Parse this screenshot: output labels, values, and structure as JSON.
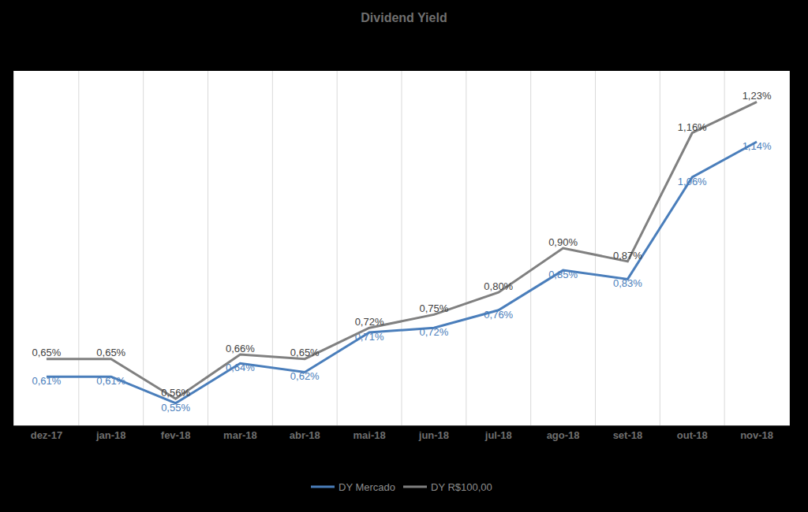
{
  "chart_data": {
    "type": "line",
    "title": "Dividend Yield",
    "categories": [
      "dez-17",
      "jan-18",
      "fev-18",
      "mar-18",
      "abr-18",
      "mai-18",
      "jun-18",
      "jul-18",
      "ago-18",
      "set-18",
      "out-18",
      "nov-18"
    ],
    "series": [
      {
        "name": "DY Mercado",
        "color": "#4a7ebb",
        "values": [
          0.61,
          0.61,
          0.55,
          0.64,
          0.62,
          0.71,
          0.72,
          0.76,
          0.85,
          0.83,
          1.06,
          1.14
        ],
        "value_labels": [
          "0,61%",
          "0,61%",
          "0,55%",
          "0,64%",
          "0,62%",
          "0,71%",
          "0,72%",
          "0,76%",
          "0,85%",
          "0,83%",
          "1,06%",
          "1,14%"
        ]
      },
      {
        "name": "DY R$100,00",
        "color": "#808080",
        "values": [
          0.65,
          0.65,
          0.56,
          0.66,
          0.65,
          0.72,
          0.75,
          0.8,
          0.9,
          0.87,
          1.16,
          1.23
        ],
        "value_labels": [
          "0,65%",
          "0,65%",
          "0,56%",
          "0,66%",
          "0,65%",
          "0,72%",
          "0,75%",
          "0,80%",
          "0,90%",
          "0,87%",
          "1,16%",
          "1,23%"
        ]
      }
    ],
    "ylim": [
      0.5,
      1.3
    ],
    "data_labels": true,
    "tick_labels": "x",
    "grid": true,
    "legend": "bottom"
  }
}
